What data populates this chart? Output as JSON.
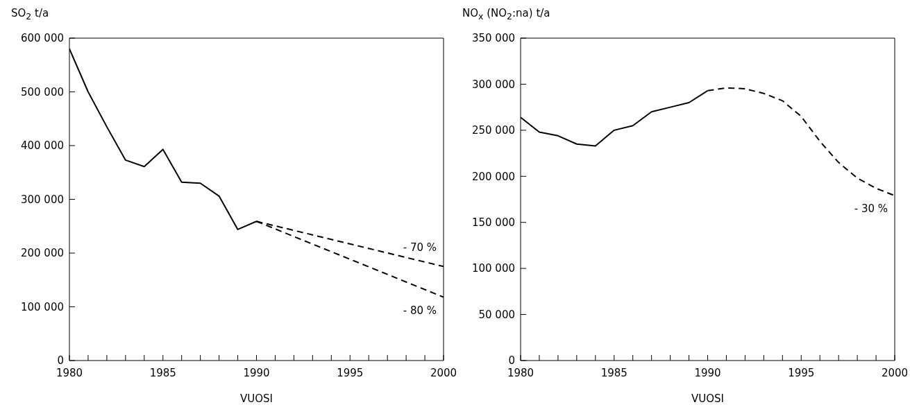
{
  "chart_data": [
    {
      "type": "line",
      "ylabel": "SO$_{2}$ t/a",
      "xlabel": "VUOSI",
      "xlim": [
        1980,
        2000
      ],
      "ylim": [
        0,
        600000
      ],
      "xticks": [
        1980,
        {
          "value": 1981,
          "label": null
        },
        {
          "value": 1982,
          "label": null
        },
        {
          "value": 1983,
          "label": null
        },
        {
          "value": 1984,
          "label": null
        },
        1985,
        {
          "value": 1986,
          "label": null
        },
        {
          "value": 1987,
          "label": null
        },
        {
          "value": 1988,
          "label": null
        },
        {
          "value": 1989,
          "label": null
        },
        1990,
        {
          "value": 1991,
          "label": null
        },
        {
          "value": 1992,
          "label": null
        },
        {
          "value": 1993,
          "label": null
        },
        {
          "value": 1994,
          "label": null
        },
        1995,
        {
          "value": 1996,
          "label": null
        },
        {
          "value": 1997,
          "label": null
        },
        {
          "value": 1998,
          "label": null
        },
        {
          "value": 1999,
          "label": null
        },
        2000
      ],
      "yticks": [
        0,
        {
          "value": 100000,
          "label": "100 000"
        },
        {
          "value": 200000,
          "label": "200 000"
        },
        {
          "value": 300000,
          "label": "300 000"
        },
        {
          "value": 400000,
          "label": "400 000"
        },
        {
          "value": 500000,
          "label": "500 000"
        },
        {
          "value": 600000,
          "label": "600 000"
        }
      ],
      "grid": false,
      "legend": false,
      "marker": "none",
      "series": [
        {
          "color": "#000000",
          "line_style": "solid",
          "x": [
            1980,
            1981,
            1982,
            1983,
            1984,
            1985,
            1986,
            1987,
            1988,
            1989,
            1990
          ],
          "values": [
            580000,
            500000,
            435000,
            373000,
            361000,
            393000,
            332000,
            330000,
            306000,
            244000,
            259000
          ]
        },
        {
          "color": "#000000",
          "line_style": "dashed",
          "x": [
            1990,
            2000
          ],
          "values": [
            259000,
            175000
          ]
        },
        {
          "color": "#000000",
          "line_style": "dashed",
          "x": [
            1990,
            2000
          ],
          "values": [
            259000,
            118000
          ]
        }
      ],
      "annotations": [
        "- 70 %",
        "- 80 %"
      ]
    },
    {
      "type": "line",
      "ylabel": "NO$_{x}$ (NO$_{2}$:na)  t/a",
      "xlabel": "VUOSI",
      "xlim": [
        1980,
        2000
      ],
      "ylim": [
        0,
        350000
      ],
      "xticks": [
        1980,
        {
          "value": 1981,
          "label": null
        },
        {
          "value": 1982,
          "label": null
        },
        {
          "value": 1983,
          "label": null
        },
        {
          "value": 1984,
          "label": null
        },
        1985,
        {
          "value": 1986,
          "label": null
        },
        {
          "value": 1987,
          "label": null
        },
        {
          "value": 1988,
          "label": null
        },
        {
          "value": 1989,
          "label": null
        },
        1990,
        {
          "value": 1991,
          "label": null
        },
        {
          "value": 1992,
          "label": null
        },
        {
          "value": 1993,
          "label": null
        },
        {
          "value": 1994,
          "label": null
        },
        1995,
        {
          "value": 1996,
          "label": null
        },
        {
          "value": 1997,
          "label": null
        },
        {
          "value": 1998,
          "label": null
        },
        {
          "value": 1999,
          "label": null
        },
        2000
      ],
      "yticks": [
        0,
        {
          "value": 50000,
          "label": "50 000"
        },
        {
          "value": 100000,
          "label": "100 000"
        },
        {
          "value": 150000,
          "label": "150 000"
        },
        {
          "value": 200000,
          "label": "200 000"
        },
        {
          "value": 250000,
          "label": "250 000"
        },
        {
          "value": 300000,
          "label": "300 000"
        },
        {
          "value": 350000,
          "label": "350 000"
        }
      ],
      "grid": false,
      "legend": false,
      "marker": "none",
      "series": [
        {
          "color": "#000000",
          "line_style": "solid",
          "x": [
            1980,
            1981,
            1982,
            1983,
            1984,
            1985,
            1986,
            1987,
            1988,
            1989,
            1990
          ],
          "values": [
            264000,
            248000,
            244000,
            235000,
            233000,
            250000,
            255000,
            270000,
            275000,
            280000,
            293000
          ]
        },
        {
          "color": "#000000",
          "line_style": "dashed",
          "x": [
            1990,
            1991,
            1992,
            1993,
            1994,
            1995,
            1996,
            1997,
            1998,
            1999,
            2000
          ],
          "values": [
            293000,
            296000,
            295000,
            290000,
            282000,
            265000,
            238000,
            215000,
            198000,
            187000,
            179000
          ]
        }
      ],
      "annotations": [
        "- 30 %"
      ]
    }
  ]
}
